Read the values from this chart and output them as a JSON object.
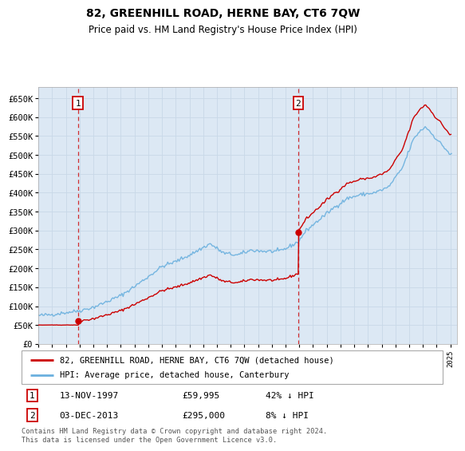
{
  "title": "82, GREENHILL ROAD, HERNE BAY, CT6 7QW",
  "subtitle": "Price paid vs. HM Land Registry's House Price Index (HPI)",
  "legend_line1": "82, GREENHILL ROAD, HERNE BAY, CT6 7QW (detached house)",
  "legend_line2": "HPI: Average price, detached house, Canterbury",
  "sale1_date": "13-NOV-1997",
  "sale1_price": "£59,995",
  "sale1_hpi": "42% ↓ HPI",
  "sale1_x": 1997.87,
  "sale1_y": 59995,
  "sale2_date": "03-DEC-2013",
  "sale2_price": "£295,000",
  "sale2_hpi": "8% ↓ HPI",
  "sale2_x": 2013.92,
  "sale2_y": 295000,
  "ylim_max": 680000,
  "xlim_start": 1995.0,
  "xlim_end": 2025.5,
  "yticks": [
    0,
    50000,
    100000,
    150000,
    200000,
    250000,
    300000,
    350000,
    400000,
    450000,
    500000,
    550000,
    600000,
    650000
  ],
  "property_color": "#cc0000",
  "hpi_color": "#6ab0de",
  "grid_color": "#c8d8e8",
  "vline_color": "#cc0000",
  "bg_color": "#e8f0f8",
  "plot_bg": "#dce8f4",
  "footnote": "Contains HM Land Registry data © Crown copyright and database right 2024.\nThis data is licensed under the Open Government Licence v3.0."
}
